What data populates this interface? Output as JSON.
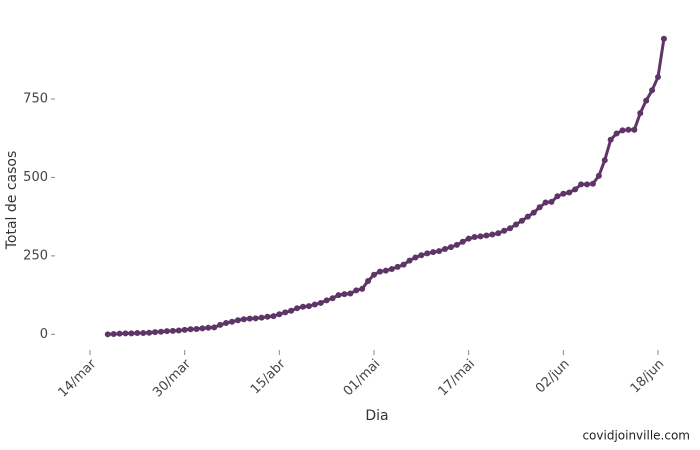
{
  "chart_data": {
    "type": "line",
    "x_label": "Dia",
    "y_label": "Total de casos",
    "annotation": "covidjoinville.com",
    "categories": [
      "14/mar",
      null,
      null,
      null,
      null,
      null,
      null,
      null,
      null,
      null,
      null,
      null,
      null,
      null,
      null,
      null,
      "30/mar",
      null,
      null,
      null,
      null,
      null,
      null,
      null,
      null,
      null,
      null,
      null,
      null,
      null,
      null,
      null,
      "15/abr",
      null,
      null,
      null,
      null,
      null,
      null,
      null,
      null,
      null,
      null,
      null,
      null,
      null,
      null,
      null,
      "01/mai",
      null,
      null,
      null,
      null,
      null,
      null,
      null,
      null,
      null,
      null,
      null,
      null,
      null,
      null,
      null,
      "17/mai",
      null,
      null,
      null,
      null,
      null,
      null,
      null,
      null,
      null,
      null,
      null,
      null,
      null,
      null,
      null,
      "02/jun",
      null,
      null,
      null,
      null,
      null,
      null,
      null,
      null,
      null,
      null,
      null,
      null,
      null,
      null,
      null,
      "18/jun",
      null
    ],
    "series": [
      {
        "name": "Total de casos",
        "color": "#5e3566",
        "values": [
          null,
          null,
          null,
          0,
          1,
          2,
          3,
          3,
          4,
          4,
          5,
          7,
          8,
          10,
          11,
          12,
          14,
          16,
          17,
          19,
          21,
          22,
          30,
          36,
          40,
          45,
          48,
          50,
          51,
          53,
          56,
          58,
          64,
          70,
          75,
          83,
          88,
          90,
          95,
          100,
          108,
          115,
          125,
          128,
          130,
          140,
          145,
          170,
          190,
          200,
          203,
          208,
          215,
          222,
          235,
          245,
          252,
          258,
          262,
          265,
          272,
          278,
          285,
          295,
          305,
          310,
          312,
          315,
          318,
          322,
          330,
          338,
          350,
          362,
          375,
          388,
          405,
          420,
          422,
          440,
          448,
          452,
          462,
          478,
          478,
          480,
          505,
          555,
          620,
          640,
          650,
          652,
          652,
          705,
          745,
          778,
          820,
          942
        ]
      }
    ],
    "ylim": [
      -50,
      970
    ],
    "yticks": [
      0,
      250,
      500,
      750
    ],
    "grid": false
  }
}
